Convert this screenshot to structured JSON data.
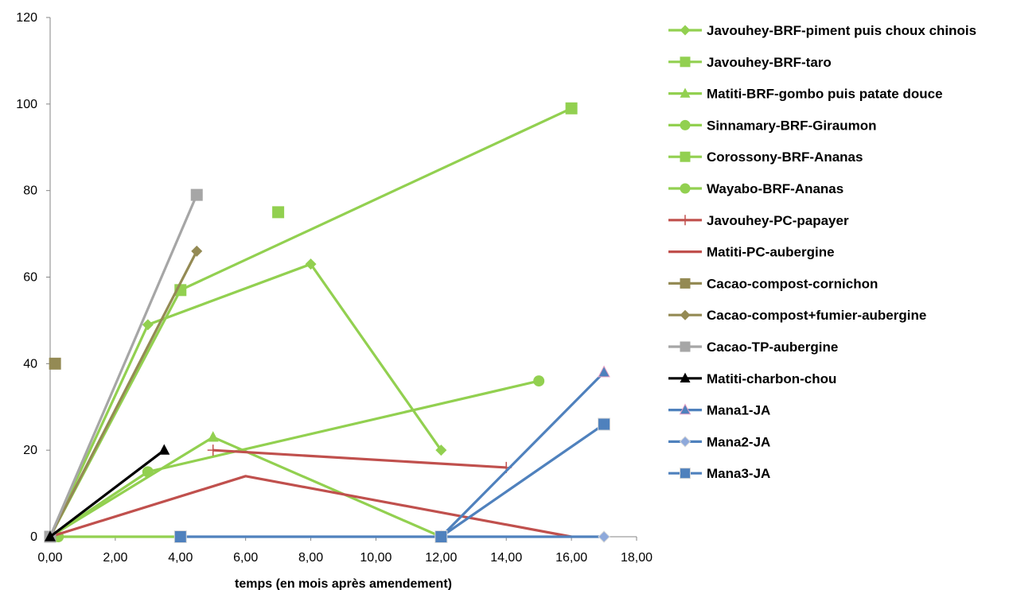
{
  "chart_data": {
    "type": "scatter",
    "title": "",
    "xlabel": "temps (en mois après amendement)",
    "ylabel": "",
    "xlim": [
      0,
      18
    ],
    "ylim": [
      0,
      120
    ],
    "x_ticks": [
      "0,00",
      "2,00",
      "4,00",
      "6,00",
      "8,00",
      "10,00",
      "12,00",
      "14,00",
      "16,00",
      "18,00"
    ],
    "y_ticks": [
      "0",
      "20",
      "40",
      "60",
      "80",
      "100",
      "120"
    ],
    "grid": false,
    "legend_position": "right",
    "series": [
      {
        "name": "Javouhey-BRF-piment puis choux chinois",
        "color": "#92D050",
        "line_color": "#92D050",
        "marker": "diamond",
        "line": true,
        "points": [
          [
            0,
            0
          ],
          [
            3,
            49
          ],
          [
            8,
            63
          ],
          [
            12,
            20
          ]
        ]
      },
      {
        "name": "Javouhey-BRF-taro",
        "color": "#92D050",
        "line_color": "#92D050",
        "marker": "square",
        "line": true,
        "points": [
          [
            0,
            0
          ],
          [
            4,
            57
          ],
          [
            16,
            99
          ]
        ]
      },
      {
        "name": "Matiti-BRF-gombo puis patate douce",
        "color": "#92D050",
        "line_color": "#92D050",
        "marker": "triangle",
        "line": true,
        "points": [
          [
            0,
            0
          ],
          [
            5,
            23
          ],
          [
            12,
            0
          ]
        ]
      },
      {
        "name": "Sinnamary-BRF-Giraumon",
        "color": "#92D050",
        "line_color": "#92D050",
        "marker": "circle",
        "line": true,
        "points": [
          [
            0,
            0
          ],
          [
            3,
            15
          ],
          [
            15,
            36
          ]
        ]
      },
      {
        "name": "Corossony-BRF-Ananas",
        "color": "#92D050",
        "line_color": "#92D050",
        "marker": "square",
        "line": true,
        "points": [
          [
            7,
            75
          ]
        ]
      },
      {
        "name": "Wayabo-BRF-Ananas",
        "color": "#92D050",
        "line_color": "#92D050",
        "marker": "circle",
        "line": true,
        "points": [
          [
            0.25,
            0
          ],
          [
            4,
            0
          ]
        ]
      },
      {
        "name": "Javouhey-PC-papayer",
        "color": "#C0504D",
        "line_color": "#C0504D",
        "marker": "plus",
        "line": true,
        "points": [
          [
            5,
            20
          ],
          [
            14,
            16
          ]
        ]
      },
      {
        "name": "Matiti-PC-aubergine",
        "color": "#C0504D",
        "line_color": "#C0504D",
        "marker": "none",
        "line": true,
        "points": [
          [
            0,
            0
          ],
          [
            6,
            14
          ],
          [
            16,
            0
          ]
        ]
      },
      {
        "name": "Cacao-compost-cornichon",
        "color": "#948A54",
        "line_color": "#948A54",
        "marker": "square",
        "line": true,
        "points": [
          [
            0.15,
            40
          ]
        ]
      },
      {
        "name": "Cacao-compost+fumier-aubergine",
        "color": "#948A54",
        "line_color": "#948A54",
        "marker": "diamond",
        "line": true,
        "points": [
          [
            0,
            0
          ],
          [
            4.5,
            66
          ]
        ]
      },
      {
        "name": "Cacao-TP-aubergine",
        "color": "#A6A6A6",
        "line_color": "#A6A6A6",
        "marker": "square",
        "line": true,
        "points": [
          [
            0,
            0
          ],
          [
            4.5,
            79
          ]
        ]
      },
      {
        "name": "Matiti-charbon-chou",
        "color": "#000000",
        "line_color": "#000000",
        "marker": "triangle",
        "line": true,
        "points": [
          [
            0,
            0
          ],
          [
            3.5,
            20
          ]
        ]
      },
      {
        "name": "Mana1-JA",
        "color": "#4F81BD",
        "line_color": "#4F81BD",
        "marker": "triangle",
        "marker_fill": "#4F81BD",
        "marker_stroke": "#E6A0C4",
        "line": true,
        "points": [
          [
            12,
            0
          ],
          [
            17,
            38
          ]
        ]
      },
      {
        "name": "Mana2-JA",
        "color": "#4F81BD",
        "line_color": "#4F81BD",
        "marker": "diamond",
        "marker_fill": "#8EA9DB",
        "marker_stroke": "#D9D9D9",
        "line": true,
        "points": [
          [
            12,
            0
          ],
          [
            17,
            0
          ]
        ]
      },
      {
        "name": "Mana3-JA",
        "color": "#4F81BD",
        "line_color": "#4F81BD",
        "marker": "square",
        "marker_fill": "#4F81BD",
        "marker_stroke": "#D9D9D9",
        "line": true,
        "points": [
          [
            4,
            0
          ],
          [
            12,
            0
          ],
          [
            17,
            26
          ]
        ]
      }
    ]
  }
}
